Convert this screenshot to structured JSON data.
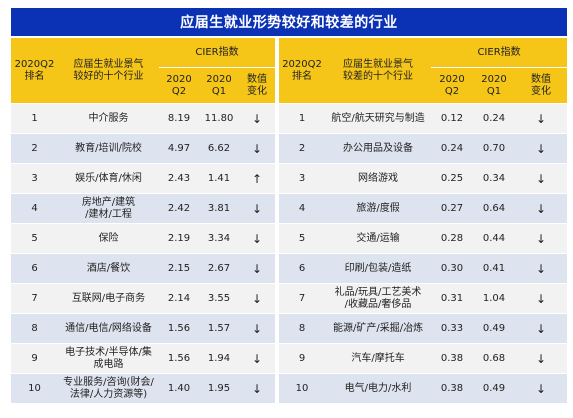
{
  "title": "应届生就业形势较好和较差的行业",
  "headers": {
    "rank": "2020Q2\n排名",
    "good_industry": "应届生就业景气\n较好的十个行业",
    "bad_industry": "应届生就业景气\n较差的十个行业",
    "cier": "CIER指数",
    "q2": "2020\nQ2",
    "q1": "2020\nQ1",
    "change": "数值\n变化"
  },
  "good": [
    {
      "rank": "1",
      "industry": "中介服务",
      "q2": "8.19",
      "q1": "11.80",
      "change": "↓"
    },
    {
      "rank": "2",
      "industry": "教育/培训/院校",
      "q2": "4.97",
      "q1": "6.62",
      "change": "↓"
    },
    {
      "rank": "3",
      "industry": "娱乐/体育/休闲",
      "q2": "2.43",
      "q1": "1.41",
      "change": "↑"
    },
    {
      "rank": "4",
      "industry": "房地产/建筑\n/建材/工程",
      "q2": "2.42",
      "q1": "3.81",
      "change": "↓"
    },
    {
      "rank": "5",
      "industry": "保险",
      "q2": "2.19",
      "q1": "3.34",
      "change": "↓"
    },
    {
      "rank": "6",
      "industry": "酒店/餐饮",
      "q2": "2.15",
      "q1": "2.67",
      "change": "↓"
    },
    {
      "rank": "7",
      "industry": "互联网/电子商务",
      "q2": "2.14",
      "q1": "3.55",
      "change": "↓"
    },
    {
      "rank": "8",
      "industry": "通信/电信/网络设备",
      "q2": "1.56",
      "q1": "1.57",
      "change": "↓"
    },
    {
      "rank": "9",
      "industry": "电子技术/半导体/集\n成电路",
      "q2": "1.56",
      "q1": "1.94",
      "change": "↓"
    },
    {
      "rank": "10",
      "industry": "专业服务/咨询(财会/\n法律/人力资源等)",
      "q2": "1.40",
      "q1": "1.95",
      "change": "↓"
    }
  ],
  "bad": [
    {
      "rank": "1",
      "industry": "航空/航天研究与制造",
      "q2": "0.12",
      "q1": "0.24",
      "change": "↓"
    },
    {
      "rank": "2",
      "industry": "办公用品及设备",
      "q2": "0.24",
      "q1": "0.70",
      "change": "↓"
    },
    {
      "rank": "3",
      "industry": "网络游戏",
      "q2": "0.25",
      "q1": "0.34",
      "change": "↓"
    },
    {
      "rank": "4",
      "industry": "旅游/度假",
      "q2": "0.27",
      "q1": "0.64",
      "change": "↓"
    },
    {
      "rank": "5",
      "industry": "交通/运输",
      "q2": "0.28",
      "q1": "0.44",
      "change": "↓"
    },
    {
      "rank": "6",
      "industry": "印刷/包装/造纸",
      "q2": "0.30",
      "q1": "0.41",
      "change": "↓"
    },
    {
      "rank": "7",
      "industry": "礼品/玩具/工艺美术\n/收藏品/奢侈品",
      "q2": "0.31",
      "q1": "1.04",
      "change": "↓"
    },
    {
      "rank": "8",
      "industry": "能源/矿产/采掘/冶炼",
      "q2": "0.33",
      "q1": "0.49",
      "change": "↓"
    },
    {
      "rank": "9",
      "industry": "汽车/摩托车",
      "q2": "0.38",
      "q1": "0.68",
      "change": "↓"
    },
    {
      "rank": "10",
      "industry": "电气/电力/水利",
      "q2": "0.38",
      "q1": "0.49",
      "change": "↓"
    }
  ]
}
